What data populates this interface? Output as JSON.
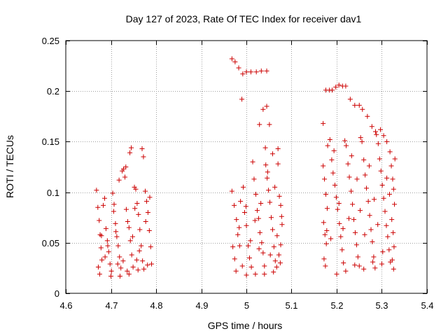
{
  "chart_data": {
    "type": "scatter",
    "title": "Day 127 of 2023, Rate Of TEC Index for receiver dav1",
    "xlabel": "GPS time / hours",
    "ylabel": "ROTI / TECUs",
    "xlim": [
      4.6,
      5.4
    ],
    "ylim": [
      0,
      0.25
    ],
    "xticks": [
      "4.6",
      "4.7",
      "4.8",
      "4.9",
      "5",
      "5.1",
      "5.2",
      "5.3",
      "5.4"
    ],
    "yticks": [
      "0",
      "0.05",
      "0.1",
      "0.15",
      "0.2",
      "0.25"
    ],
    "grid": true,
    "marker": "plus",
    "colors": {
      "points": "#cc0000",
      "grid": "#a0a0a0",
      "axes": "#000000"
    },
    "series": [
      {
        "points": [
          [
            4.668,
            0.102
          ],
          [
            4.671,
            0.085
          ],
          [
            4.674,
            0.072
          ],
          [
            4.676,
            0.058
          ],
          [
            4.678,
            0.045
          ],
          [
            4.68,
            0.033
          ],
          [
            4.672,
            0.026
          ],
          [
            4.675,
            0.019
          ],
          [
            4.679,
            0.057
          ],
          [
            4.683,
            0.087
          ],
          [
            4.686,
            0.094
          ],
          [
            4.689,
            0.064
          ],
          [
            4.692,
            0.052
          ],
          [
            4.695,
            0.041
          ],
          [
            4.698,
            0.029
          ],
          [
            4.701,
            0.022
          ],
          [
            4.704,
            0.099
          ],
          [
            4.707,
            0.088
          ],
          [
            4.71,
            0.069
          ],
          [
            4.713,
            0.056
          ],
          [
            4.716,
            0.047
          ],
          [
            4.719,
            0.036
          ],
          [
            4.722,
            0.025
          ],
          [
            4.725,
            0.121
          ],
          [
            4.728,
            0.123
          ],
          [
            4.731,
            0.115
          ],
          [
            4.734,
            0.083
          ],
          [
            4.737,
            0.071
          ],
          [
            4.74,
            0.065
          ],
          [
            4.743,
            0.052
          ],
          [
            4.746,
            0.038
          ],
          [
            4.749,
            0.026
          ],
          [
            4.752,
            0.105
          ],
          [
            4.755,
            0.103
          ],
          [
            4.758,
            0.089
          ],
          [
            4.761,
            0.078
          ],
          [
            4.764,
            0.063
          ],
          [
            4.767,
            0.047
          ],
          [
            4.77,
            0.032
          ],
          [
            4.773,
            0.024
          ],
          [
            4.776,
            0.101
          ],
          [
            4.779,
            0.091
          ],
          [
            4.782,
            0.08
          ],
          [
            4.785,
            0.062
          ],
          [
            4.788,
            0.046
          ],
          [
            4.79,
            0.029
          ],
          [
            4.7,
            0.017
          ],
          [
            4.72,
            0.017
          ],
          [
            4.74,
            0.019
          ],
          [
            4.76,
            0.023
          ],
          [
            4.781,
            0.028
          ],
          [
            4.687,
            0.036
          ],
          [
            4.693,
            0.047
          ],
          [
            4.711,
            0.061
          ],
          [
            4.727,
            0.032
          ],
          [
            4.748,
            0.056
          ],
          [
            4.763,
            0.042
          ],
          [
            4.777,
            0.071
          ],
          [
            4.733,
            0.125
          ],
          [
            4.742,
            0.139
          ],
          [
            4.745,
            0.144
          ],
          [
            4.769,
            0.143
          ],
          [
            4.772,
            0.135
          ],
          [
            4.718,
            0.112
          ],
          [
            4.706,
            0.081
          ],
          [
            4.753,
            0.084
          ],
          [
            4.757,
            0.033
          ],
          [
            4.715,
            0.029
          ],
          [
            4.736,
            0.022
          ],
          [
            4.786,
            0.095
          ]
        ]
      },
      {
        "points": [
          [
            4.968,
            0.232
          ],
          [
            4.975,
            0.229
          ],
          [
            4.983,
            0.223
          ],
          [
            4.992,
            0.217
          ],
          [
            5.0,
            0.219
          ],
          [
            5.01,
            0.219
          ],
          [
            5.022,
            0.219
          ],
          [
            5.033,
            0.22
          ],
          [
            5.045,
            0.22
          ],
          [
            4.99,
            0.192
          ],
          [
            5.037,
            0.182
          ],
          [
            5.045,
            0.185
          ],
          [
            5.029,
            0.167
          ],
          [
            5.051,
            0.167
          ],
          [
            5.042,
            0.144
          ],
          [
            5.058,
            0.138
          ],
          [
            5.07,
            0.143
          ],
          [
            4.968,
            0.101
          ],
          [
            4.973,
            0.087
          ],
          [
            4.978,
            0.073
          ],
          [
            4.981,
            0.058
          ],
          [
            4.97,
            0.046
          ],
          [
            4.974,
            0.034
          ],
          [
            4.977,
            0.022
          ],
          [
            4.984,
            0.065
          ],
          [
            4.987,
            0.091
          ],
          [
            4.993,
            0.105
          ],
          [
            4.996,
            0.08
          ],
          [
            5.0,
            0.067
          ],
          [
            5.004,
            0.047
          ],
          [
            5.007,
            0.035
          ],
          [
            5.011,
            0.026
          ],
          [
            5.014,
            0.13
          ],
          [
            5.017,
            0.113
          ],
          [
            5.021,
            0.098
          ],
          [
            5.024,
            0.082
          ],
          [
            5.027,
            0.074
          ],
          [
            5.03,
            0.06
          ],
          [
            5.034,
            0.05
          ],
          [
            5.037,
            0.04
          ],
          [
            5.04,
            0.027
          ],
          [
            5.043,
            0.127
          ],
          [
            5.046,
            0.114
          ],
          [
            5.049,
            0.102
          ],
          [
            5.052,
            0.09
          ],
          [
            5.055,
            0.075
          ],
          [
            5.058,
            0.063
          ],
          [
            5.061,
            0.046
          ],
          [
            5.064,
            0.032
          ],
          [
            5.067,
            0.026
          ],
          [
            5.07,
            0.128
          ],
          [
            5.073,
            0.096
          ],
          [
            5.076,
            0.087
          ],
          [
            5.079,
            0.068
          ],
          [
            5.076,
            0.048
          ],
          [
            5.072,
            0.038
          ],
          [
            5.075,
            0.03
          ],
          [
            5.0,
            0.018
          ],
          [
            5.02,
            0.019
          ],
          [
            5.04,
            0.019
          ],
          [
            5.06,
            0.021
          ],
          [
            4.985,
            0.047
          ],
          [
            5.019,
            0.072
          ],
          [
            5.047,
            0.12
          ],
          [
            5.063,
            0.105
          ],
          [
            5.053,
            0.038
          ],
          [
            4.999,
            0.086
          ],
          [
            5.028,
            0.044
          ],
          [
            4.991,
            0.027
          ],
          [
            5.078,
            0.076
          ],
          [
            5.068,
            0.057
          ],
          [
            5.032,
            0.089
          ],
          [
            5.009,
            0.052
          ]
        ]
      },
      {
        "points": [
          [
            5.17,
            0.168
          ],
          [
            5.176,
            0.201
          ],
          [
            5.184,
            0.201
          ],
          [
            5.19,
            0.201
          ],
          [
            5.198,
            0.204
          ],
          [
            5.205,
            0.206
          ],
          [
            5.213,
            0.205
          ],
          [
            5.22,
            0.205
          ],
          [
            5.23,
            0.192
          ],
          [
            5.24,
            0.186
          ],
          [
            5.25,
            0.186
          ],
          [
            5.257,
            0.182
          ],
          [
            5.268,
            0.175
          ],
          [
            5.278,
            0.165
          ],
          [
            5.286,
            0.16
          ],
          [
            5.297,
            0.162
          ],
          [
            5.304,
            0.156
          ],
          [
            5.311,
            0.15
          ],
          [
            5.318,
            0.14
          ],
          [
            5.17,
            0.126
          ],
          [
            5.173,
            0.113
          ],
          [
            5.176,
            0.098
          ],
          [
            5.179,
            0.084
          ],
          [
            5.171,
            0.07
          ],
          [
            5.174,
            0.058
          ],
          [
            5.177,
            0.049
          ],
          [
            5.172,
            0.034
          ],
          [
            5.175,
            0.027
          ],
          [
            5.18,
            0.146
          ],
          [
            5.185,
            0.152
          ],
          [
            5.189,
            0.132
          ],
          [
            5.192,
            0.119
          ],
          [
            5.196,
            0.107
          ],
          [
            5.199,
            0.095
          ],
          [
            5.202,
            0.083
          ],
          [
            5.206,
            0.069
          ],
          [
            5.209,
            0.056
          ],
          [
            5.212,
            0.043
          ],
          [
            5.215,
            0.03
          ],
          [
            5.218,
            0.151
          ],
          [
            5.221,
            0.146
          ],
          [
            5.225,
            0.128
          ],
          [
            5.228,
            0.115
          ],
          [
            5.232,
            0.101
          ],
          [
            5.235,
            0.088
          ],
          [
            5.238,
            0.073
          ],
          [
            5.241,
            0.06
          ],
          [
            5.244,
            0.048
          ],
          [
            5.247,
            0.036
          ],
          [
            5.25,
            0.027
          ],
          [
            5.253,
            0.154
          ],
          [
            5.256,
            0.15
          ],
          [
            5.26,
            0.132
          ],
          [
            5.263,
            0.117
          ],
          [
            5.266,
            0.104
          ],
          [
            5.27,
            0.091
          ],
          [
            5.273,
            0.077
          ],
          [
            5.276,
            0.063
          ],
          [
            5.279,
            0.051
          ],
          [
            5.282,
            0.036
          ],
          [
            5.285,
            0.025
          ],
          [
            5.288,
            0.157
          ],
          [
            5.292,
            0.148
          ],
          [
            5.295,
            0.133
          ],
          [
            5.298,
            0.121
          ],
          [
            5.301,
            0.107
          ],
          [
            5.304,
            0.094
          ],
          [
            5.307,
            0.081
          ],
          [
            5.31,
            0.067
          ],
          [
            5.313,
            0.056
          ],
          [
            5.316,
            0.043
          ],
          [
            5.319,
            0.031
          ],
          [
            5.321,
            0.126
          ],
          [
            5.324,
            0.113
          ],
          [
            5.326,
            0.103
          ],
          [
            5.328,
            0.088
          ],
          [
            5.322,
            0.073
          ],
          [
            5.325,
            0.06
          ],
          [
            5.327,
            0.046
          ],
          [
            5.323,
            0.033
          ],
          [
            5.326,
            0.024
          ],
          [
            5.2,
            0.019
          ],
          [
            5.22,
            0.022
          ],
          [
            5.24,
            0.028
          ],
          [
            5.26,
            0.024
          ],
          [
            5.28,
            0.031
          ],
          [
            5.3,
            0.029
          ],
          [
            5.187,
            0.054
          ],
          [
            5.205,
            0.089
          ],
          [
            5.227,
            0.074
          ],
          [
            5.245,
            0.113
          ],
          [
            5.262,
            0.058
          ],
          [
            5.283,
            0.093
          ],
          [
            5.302,
            0.041
          ],
          [
            5.317,
            0.098
          ],
          [
            5.194,
            0.141
          ],
          [
            5.233,
            0.136
          ],
          [
            5.272,
            0.126
          ],
          [
            5.311,
            0.114
          ],
          [
            5.214,
            0.064
          ],
          [
            5.252,
            0.082
          ],
          [
            5.291,
            0.068
          ],
          [
            5.178,
            0.062
          ],
          [
            5.329,
            0.133
          ]
        ]
      }
    ]
  }
}
